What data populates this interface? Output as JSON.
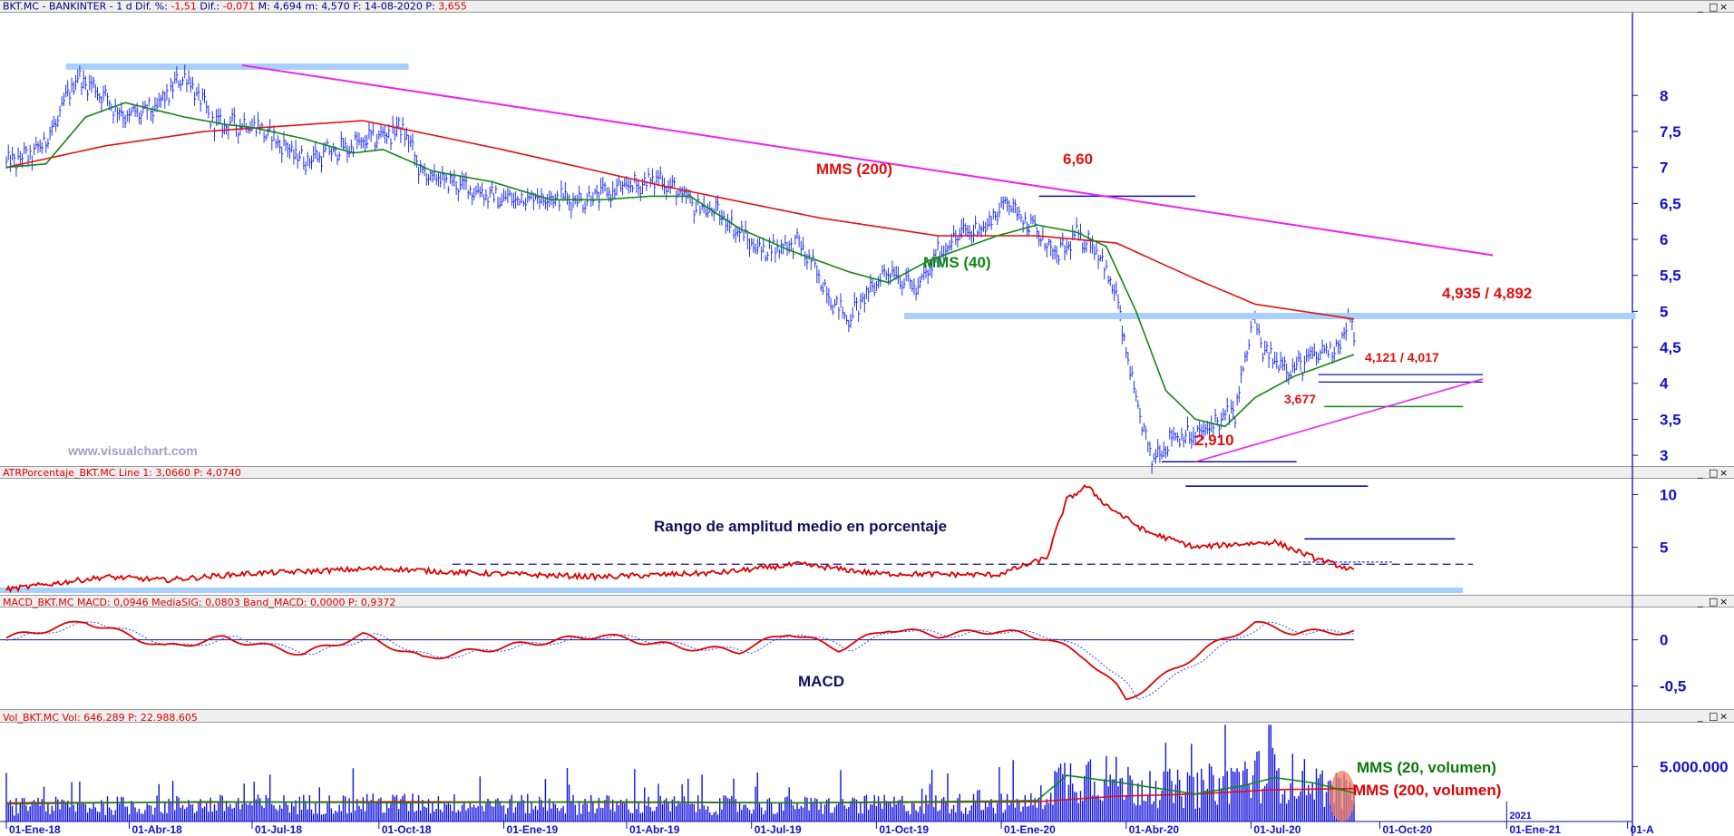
{
  "header": {
    "main_segments": [
      {
        "text": "BKT.MC - BANKINTER  -  1 d  Dif. %: ",
        "color": "#000080"
      },
      {
        "text": "-1,51",
        "color": "#e00000"
      },
      {
        "text": "  Dif.: ",
        "color": "#000080"
      },
      {
        "text": "-0,071",
        "color": "#e00000"
      },
      {
        "text": "  M: 4,694  m: 4,570  F: 14-08-2020  P: ",
        "color": "#000080"
      },
      {
        "text": "3,655",
        "color": "#e00000"
      }
    ],
    "atr_segments": [
      {
        "text": "ATRPorcentaje_BKT.MC  Line 1: 3,0660  P: 4,0740",
        "color": "#e00000"
      }
    ],
    "macd_segments": [
      {
        "text": "MACD_BKT.MC  MACD: 0,0946  MediaSIG: 0,0803  Band_MACD: 0,0000  P: 0,9372",
        "color": "#e00000"
      }
    ],
    "vol_segments": [
      {
        "text": "Vol_BKT.MC  Vol: 646.289  P: 22.988.605",
        "color": "#e00000"
      }
    ]
  },
  "window_buttons": [
    "_",
    "□",
    "×"
  ],
  "watermark": "www.visualchart.com",
  "chart_data": [
    {
      "type": "line",
      "name": "price",
      "y_ticks": [
        "8",
        "7,5",
        "7",
        "6,5",
        "6",
        "5,5",
        "5",
        "4,5",
        "4",
        "3,5",
        "3"
      ],
      "ylim": [
        2.85,
        9.15
      ],
      "x_ticks": [
        "01-Ene-18",
        "01-Abr-18",
        "01-Jul-18",
        "01-Oct-18",
        "01-Ene-19",
        "01-Abr-19",
        "01-Jul-19",
        "01-Oct-19",
        "01-Ene-20",
        "01-Abr-20",
        "01-Jul-20",
        "01-Oct-20",
        "01-Ene-21",
        "01-A"
      ],
      "x_bar_index": [
        0,
        62,
        124,
        188,
        251,
        313,
        376,
        439,
        502,
        565,
        628,
        693,
        757,
        818
      ],
      "price_keypoints": [
        [
          0,
          7.05
        ],
        [
          15,
          7.2
        ],
        [
          25,
          7.6
        ],
        [
          35,
          8.25
        ],
        [
          45,
          8.1
        ],
        [
          60,
          7.7
        ],
        [
          75,
          7.8
        ],
        [
          90,
          8.3
        ],
        [
          105,
          7.6
        ],
        [
          125,
          7.6
        ],
        [
          150,
          7.1
        ],
        [
          175,
          7.3
        ],
        [
          200,
          7.55
        ],
        [
          210,
          6.9
        ],
        [
          230,
          6.75
        ],
        [
          250,
          6.55
        ],
        [
          270,
          6.6
        ],
        [
          290,
          6.55
        ],
        [
          310,
          6.7
        ],
        [
          330,
          6.85
        ],
        [
          345,
          6.5
        ],
        [
          360,
          6.35
        ],
        [
          380,
          5.85
        ],
        [
          400,
          5.95
        ],
        [
          418,
          5.1
        ],
        [
          425,
          4.9
        ],
        [
          445,
          5.6
        ],
        [
          460,
          5.3
        ],
        [
          470,
          5.8
        ],
        [
          480,
          6.05
        ],
        [
          495,
          6.2
        ],
        [
          505,
          6.55
        ],
        [
          515,
          6.25
        ],
        [
          530,
          5.75
        ],
        [
          540,
          6.05
        ],
        [
          550,
          5.9
        ],
        [
          560,
          5.2
        ],
        [
          568,
          4.0
        ],
        [
          573,
          3.4
        ],
        [
          578,
          2.95
        ],
        [
          590,
          3.3
        ],
        [
          600,
          3.25
        ],
        [
          610,
          3.45
        ],
        [
          620,
          3.6
        ],
        [
          625,
          4.3
        ],
        [
          629,
          4.9
        ],
        [
          635,
          4.4
        ],
        [
          650,
          4.2
        ],
        [
          665,
          4.45
        ],
        [
          673,
          4.55
        ],
        [
          677,
          4.89
        ],
        [
          680,
          4.65
        ]
      ],
      "sma200_keypoints": [
        [
          0,
          7.0
        ],
        [
          50,
          7.3
        ],
        [
          100,
          7.5
        ],
        [
          180,
          7.65
        ],
        [
          250,
          7.25
        ],
        [
          330,
          6.75
        ],
        [
          410,
          6.3
        ],
        [
          470,
          6.05
        ],
        [
          520,
          6.05
        ],
        [
          560,
          5.95
        ],
        [
          600,
          5.45
        ],
        [
          630,
          5.1
        ],
        [
          680,
          4.892
        ]
      ],
      "sma40_keypoints": [
        [
          0,
          7.0
        ],
        [
          20,
          7.05
        ],
        [
          40,
          7.7
        ],
        [
          60,
          7.9
        ],
        [
          90,
          7.7
        ],
        [
          110,
          7.6
        ],
        [
          125,
          7.55
        ],
        [
          150,
          7.4
        ],
        [
          175,
          7.2
        ],
        [
          190,
          7.25
        ],
        [
          215,
          6.95
        ],
        [
          245,
          6.8
        ],
        [
          275,
          6.55
        ],
        [
          300,
          6.55
        ],
        [
          325,
          6.6
        ],
        [
          345,
          6.6
        ],
        [
          370,
          6.15
        ],
        [
          395,
          5.85
        ],
        [
          425,
          5.55
        ],
        [
          445,
          5.4
        ],
        [
          465,
          5.7
        ],
        [
          500,
          6.05
        ],
        [
          520,
          6.2
        ],
        [
          540,
          6.1
        ],
        [
          555,
          5.9
        ],
        [
          570,
          5.0
        ],
        [
          585,
          3.9
        ],
        [
          600,
          3.5
        ],
        [
          615,
          3.4
        ],
        [
          630,
          3.8
        ],
        [
          650,
          4.1
        ],
        [
          670,
          4.3
        ],
        [
          680,
          4.4
        ]
      ],
      "labels": [
        "MMS (200)",
        "MMS (40)",
        "6,60",
        "4,935 / 4,892",
        "4,121 / 4,017",
        "3,677",
        "2,910"
      ],
      "levels": {
        "resistance_top": 8.4,
        "peak": 6.6,
        "resistance": 4.935,
        "support1": 4.121,
        "support2": 4.017,
        "support3": 3.677,
        "low": 2.91
      }
    },
    {
      "type": "line",
      "name": "atr_percent",
      "y_ticks": [
        "10",
        "5"
      ],
      "ylim": [
        0.5,
        11.5
      ],
      "title": "Rango de amplitud medio en porcentaje",
      "keypoints": [
        [
          0,
          1.0
        ],
        [
          50,
          2.2
        ],
        [
          80,
          1.9
        ],
        [
          120,
          2.5
        ],
        [
          190,
          3.0
        ],
        [
          230,
          2.6
        ],
        [
          300,
          2.2
        ],
        [
          360,
          2.6
        ],
        [
          400,
          3.4
        ],
        [
          440,
          2.5
        ],
        [
          500,
          2.4
        ],
        [
          525,
          4.0
        ],
        [
          535,
          9.5
        ],
        [
          545,
          10.8
        ],
        [
          555,
          9.0
        ],
        [
          575,
          6.5
        ],
        [
          600,
          5.0
        ],
        [
          620,
          5.3
        ],
        [
          640,
          5.5
        ],
        [
          660,
          4.0
        ],
        [
          680,
          2.8
        ]
      ],
      "guides": {
        "dashed_level": 3.4,
        "small_dashed": 3.6,
        "top_line": 10.8,
        "mid_line": 5.8
      }
    },
    {
      "type": "line",
      "name": "macd",
      "y_ticks": [
        "0",
        "-0,5"
      ],
      "ylim": [
        -0.75,
        0.35
      ],
      "title": "MACD",
      "keypoints": [
        [
          0,
          0.02
        ],
        [
          40,
          0.2
        ],
        [
          80,
          -0.08
        ],
        [
          110,
          0.02
        ],
        [
          150,
          -0.15
        ],
        [
          180,
          0.05
        ],
        [
          210,
          -0.2
        ],
        [
          260,
          -0.05
        ],
        [
          300,
          0.05
        ],
        [
          340,
          -0.08
        ],
        [
          370,
          -0.12
        ],
        [
          395,
          0.08
        ],
        [
          420,
          -0.1
        ],
        [
          445,
          0.12
        ],
        [
          470,
          0.05
        ],
        [
          500,
          0.1
        ],
        [
          525,
          0.02
        ],
        [
          545,
          -0.2
        ],
        [
          560,
          -0.5
        ],
        [
          565,
          -0.65
        ],
        [
          580,
          -0.45
        ],
        [
          605,
          -0.1
        ],
        [
          630,
          0.18
        ],
        [
          650,
          0.08
        ],
        [
          680,
          0.09
        ]
      ]
    },
    {
      "type": "bar",
      "name": "volume",
      "y_ticks": [
        "5.000.000"
      ],
      "ylim": [
        0,
        9000000
      ],
      "series": [
        {
          "name": "MMS (20, volumen)",
          "color": "#0a7a0a"
        },
        {
          "name": "MMS (200, volumen)",
          "color": "#e00000"
        }
      ],
      "vol_keypoints": [
        [
          0,
          1500000
        ],
        [
          100,
          1700000
        ],
        [
          200,
          1800000
        ],
        [
          300,
          1700000
        ],
        [
          400,
          1600000
        ],
        [
          520,
          1900000
        ],
        [
          530,
          4200000
        ],
        [
          550,
          4800000
        ],
        [
          570,
          3500000
        ],
        [
          600,
          3200000
        ],
        [
          620,
          4500000
        ],
        [
          640,
          4800000
        ],
        [
          660,
          3800000
        ],
        [
          680,
          2800000
        ]
      ],
      "sma20_keypoints": [
        [
          0,
          1600000
        ],
        [
          100,
          1800000
        ],
        [
          200,
          1700000
        ],
        [
          300,
          1800000
        ],
        [
          400,
          1700000
        ],
        [
          520,
          1900000
        ],
        [
          535,
          4200000
        ],
        [
          560,
          3600000
        ],
        [
          600,
          2500000
        ],
        [
          625,
          3300000
        ],
        [
          640,
          4000000
        ],
        [
          660,
          3500000
        ],
        [
          680,
          2600000
        ]
      ],
      "sma200_keypoints": [
        [
          0,
          1700000
        ],
        [
          200,
          1800000
        ],
        [
          400,
          1700000
        ],
        [
          520,
          1800000
        ],
        [
          560,
          2300000
        ],
        [
          600,
          2500000
        ],
        [
          640,
          2900000
        ],
        [
          680,
          3000000
        ]
      ]
    }
  ],
  "colors": {
    "background": "#ffffff",
    "price": "#2233ee",
    "axis_text": "#1111cc",
    "sma200": "#e01010",
    "sma40": "#118811",
    "trend": "#ee22ee",
    "level": "#a8d0ff",
    "dark_level": "#1111aa"
  }
}
